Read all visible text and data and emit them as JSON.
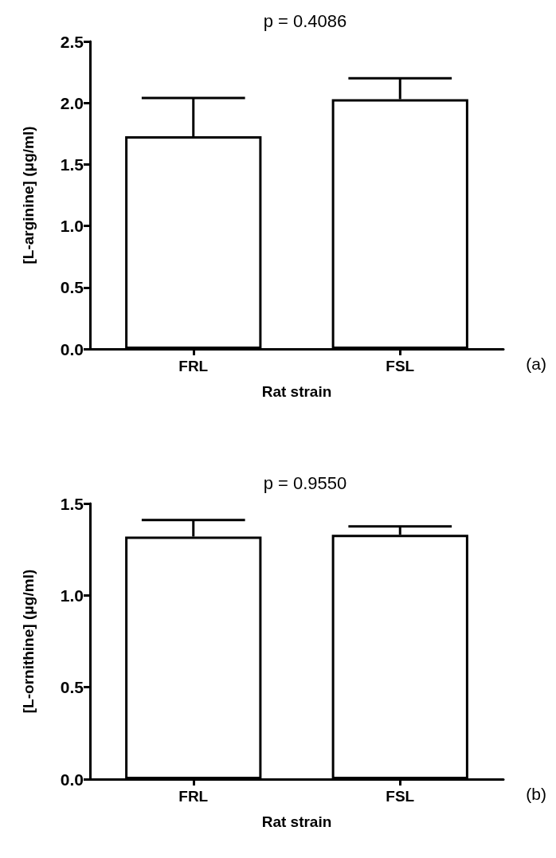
{
  "chart_data": [
    {
      "type": "bar",
      "title": "p = 0.4086",
      "xlabel": "Rat strain",
      "ylabel": "[L-arginine] (μg/ml)",
      "categories": [
        "FRL",
        "FSL"
      ],
      "values": [
        1.73,
        2.03
      ],
      "errors": [
        [
          1.73,
          2.04
        ],
        [
          2.03,
          2.2
        ]
      ],
      "color": "#ffffff",
      "ylim": [
        0,
        2.5
      ],
      "yticks": [
        {
          "value": 0,
          "label": "0.0"
        },
        {
          "value": 0.5,
          "label": "0.5"
        },
        {
          "value": 1,
          "label": "1.0"
        },
        {
          "value": 1.5,
          "label": "1.5"
        },
        {
          "value": 2,
          "label": "2.0"
        },
        {
          "value": 2.5,
          "label": "2.5"
        }
      ],
      "grid": false,
      "annotations": [
        "(a)"
      ]
    },
    {
      "type": "bar",
      "title": "p = 0.9550",
      "xlabel": "Rat strain",
      "ylabel": "[L-ornithine] (μg/ml)",
      "categories": [
        "FRL",
        "FSL"
      ],
      "values": [
        1.32,
        1.33
      ],
      "errors": [
        [
          1.32,
          1.41
        ],
        [
          1.33,
          1.375
        ]
      ],
      "color": "#ffffff",
      "ylim": [
        0,
        1.5
      ],
      "yticks": [
        {
          "value": 0,
          "label": "0.0"
        },
        {
          "value": 0.5,
          "label": "0.5"
        },
        {
          "value": 1,
          "label": "1.0"
        },
        {
          "value": 1.5,
          "label": "1.5"
        }
      ],
      "grid": false,
      "annotations": [
        "(b)"
      ]
    }
  ]
}
